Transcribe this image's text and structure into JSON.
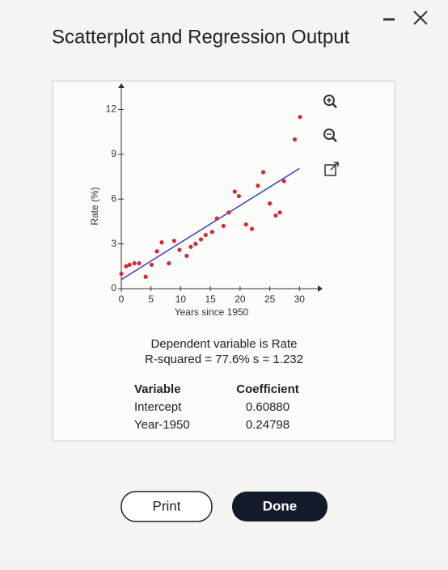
{
  "header": {
    "title": "Scatterplot and Regression Output"
  },
  "chart_data": {
    "type": "scatter",
    "x_label": "Years since 1950",
    "y_label": "Rate (%)",
    "x": [
      0,
      0.8,
      1.4,
      2.2,
      3.0,
      4.1,
      5.1,
      6.0,
      6.8,
      8.0,
      8.9,
      9.8,
      11.0,
      11.7,
      12.5,
      13.4,
      14.2,
      15.3,
      16.1,
      17.2,
      18.1,
      19.1,
      19.8,
      21.0,
      22.0,
      23.0,
      23.9,
      25.0,
      26.0,
      26.7,
      27.4,
      29.2,
      30.1
    ],
    "values": [
      1.0,
      1.5,
      1.6,
      1.7,
      1.7,
      0.8,
      1.6,
      2.5,
      3.1,
      1.7,
      3.2,
      2.6,
      2.2,
      2.8,
      3.0,
      3.3,
      3.6,
      3.8,
      4.7,
      4.2,
      5.1,
      6.5,
      6.2,
      4.3,
      4.0,
      6.9,
      7.8,
      5.7,
      4.9,
      5.1,
      7.2,
      10.0,
      11.5
    ],
    "color": "#d42a2f",
    "line_color": "#3b3bc4",
    "xlim": [
      0,
      32
    ],
    "ylim": [
      0,
      13
    ],
    "xticks": [
      0,
      5,
      10,
      15,
      20,
      25,
      30
    ],
    "yticks": [
      0,
      3,
      6,
      9,
      12
    ]
  },
  "output": {
    "dependent": "Dependent variable is Rate",
    "fit": "R-squared = 77.6%  s = 1.232",
    "headers": [
      "Variable",
      "Coefficient"
    ],
    "rows": [
      [
        "Intercept",
        {
          "value": 0.6088,
          "label": "0.60880"
        }
      ],
      [
        "Year-1950",
        {
          "value": 0.24798,
          "label": "0.24798"
        }
      ]
    ]
  },
  "buttons": {
    "print": "Print",
    "done": "Done"
  }
}
